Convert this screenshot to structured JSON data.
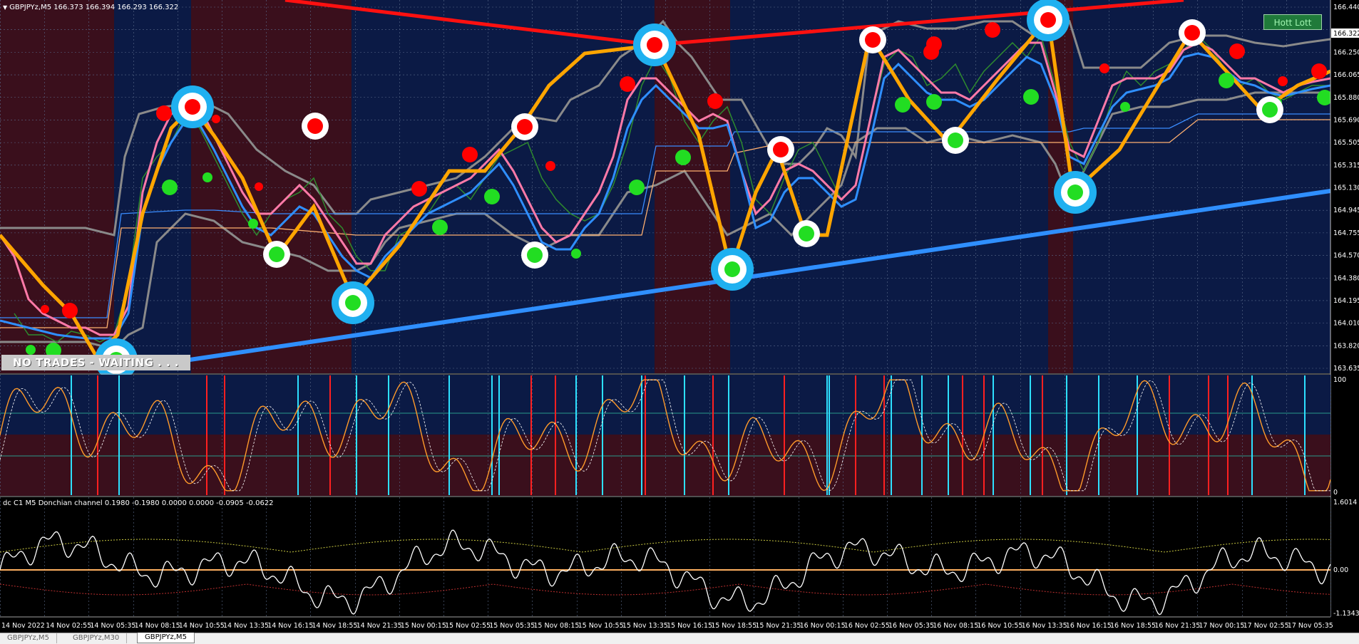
{
  "window": {
    "symbol_header": "GBPJPYz,M5  166.373 166.394 166.293 166.322",
    "status_banner": "NO TRADES - WAITING . . .",
    "hott_button": "Hott Lott",
    "indicator_header": "dc C1 M5 Donchian channel 0.1980 -0.1980 0.0000 0.0000 -0.0905 -0.0622"
  },
  "price_axis": {
    "labels": [
      "166.440",
      "166.322",
      "166.250",
      "166.065",
      "165.880",
      "165.690",
      "165.505",
      "165.315",
      "165.130",
      "164.945",
      "164.755",
      "164.570",
      "164.380",
      "164.195",
      "164.010",
      "163.820",
      "163.635"
    ],
    "current_price": "166.322"
  },
  "oscillator_axis": {
    "top": "100",
    "bottom": "0"
  },
  "donchian_axis": {
    "top": "1.6014",
    "mid": "0.00",
    "bottom": "-1.1343"
  },
  "time_axis": [
    "14 Nov 2022",
    "14 Nov 02:55",
    "14 Nov 05:35",
    "14 Nov 08:15",
    "14 Nov 10:55",
    "14 Nov 13:35",
    "14 Nov 16:15",
    "14 Nov 18:55",
    "14 Nov 21:35",
    "15 Nov 00:15",
    "15 Nov 02:55",
    "15 Nov 05:35",
    "15 Nov 08:15",
    "15 Nov 10:55",
    "15 Nov 13:35",
    "15 Nov 16:15",
    "15 Nov 18:55",
    "15 Nov 21:35",
    "16 Nov 00:15",
    "16 Nov 02:55",
    "16 Nov 05:35",
    "16 Nov 08:15",
    "16 Nov 10:55",
    "16 Nov 13:35",
    "16 Nov 16:15",
    "16 Nov 18:55",
    "16 Nov 21:35",
    "17 Nov 00:15",
    "17 Nov 02:55",
    "17 Nov 05:35"
  ],
  "tabs": [
    {
      "label": "GBPJPYz,M5",
      "active": false
    },
    {
      "label": "GBPJPYz,M30",
      "active": false
    },
    {
      "label": "GBPJPYz,M5",
      "active": true
    }
  ],
  "colors": {
    "bull_zone": "#0b1a45",
    "bear_zone": "#3a0f1c",
    "zigzag": "#ffa500",
    "trend_blue": "#2f8fff",
    "trend_red": "#ff1010",
    "swing_high": "#ff0000",
    "swing_low": "#22dd22",
    "target_ring": "#1fb0f0"
  }
}
